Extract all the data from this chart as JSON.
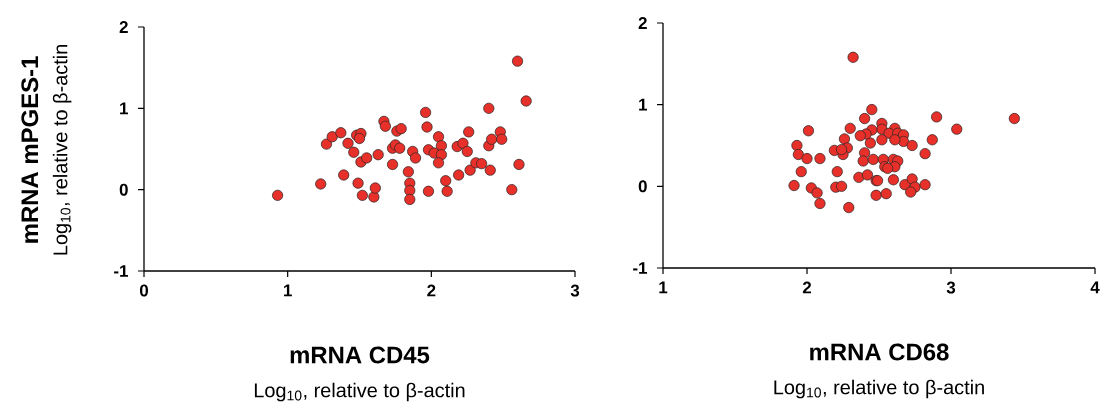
{
  "chart_data": [
    {
      "type": "scatter",
      "xlabel": "mRNA CD45",
      "ylabel": "mRNA mPGES-1",
      "annotations": [
        "Log$_{10}$, relative to β-actin",
        "Log$_{10}$, relative to β-actin"
      ],
      "xlim": [
        0,
        3
      ],
      "ylim": [
        -1,
        2
      ],
      "xticks": [
        0,
        1,
        2,
        3
      ],
      "yticks": [
        -1,
        0,
        1,
        2
      ],
      "marker": "circle",
      "series": [
        {
          "color": "#e8302a",
          "x": [
            0.93,
            1.23,
            1.27,
            1.31,
            1.37,
            1.42,
            1.39,
            1.46,
            1.48,
            1.51,
            1.5,
            1.51,
            1.55,
            1.49,
            1.52,
            1.6,
            1.61,
            1.63,
            1.67,
            1.68,
            1.73,
            1.73,
            1.75,
            1.78,
            1.76,
            1.79,
            1.84,
            1.85,
            1.85,
            1.85,
            1.87,
            1.89,
            1.96,
            1.97,
            1.98,
            1.98,
            2.02,
            2.05,
            2.07,
            2.07,
            2.05,
            2.1,
            2.11,
            2.18,
            2.22,
            2.25,
            2.26,
            2.19,
            2.27,
            2.31,
            2.35,
            2.4,
            2.4,
            2.42,
            2.41,
            2.48,
            2.49,
            2.56,
            2.6,
            2.61,
            2.66
          ],
          "values": [
            -0.07,
            0.07,
            0.56,
            0.65,
            0.7,
            0.57,
            0.18,
            0.46,
            0.67,
            0.69,
            0.63,
            0.34,
            0.39,
            0.08,
            -0.07,
            -0.09,
            0.02,
            0.43,
            0.84,
            0.78,
            0.31,
            0.51,
            0.55,
            0.51,
            0.72,
            0.75,
            0.22,
            0.08,
            -0.01,
            -0.12,
            0.47,
            0.39,
            0.95,
            0.77,
            0.49,
            -0.02,
            0.45,
            0.65,
            0.54,
            0.43,
            0.33,
            0.11,
            -0.02,
            0.53,
            0.57,
            0.47,
            0.71,
            0.18,
            0.24,
            0.33,
            0.32,
            1.0,
            0.54,
            0.62,
            0.24,
            0.71,
            0.62,
            0.0,
            1.58,
            0.31,
            1.09
          ]
        }
      ]
    },
    {
      "type": "scatter",
      "xlabel": "mRNA CD68",
      "annotations": [
        "Log$_{10}$, relative to β-actin"
      ],
      "xlim": [
        1,
        4
      ],
      "ylim": [
        -1,
        2
      ],
      "xticks": [
        1,
        2,
        3,
        4
      ],
      "yticks": [
        -1,
        0,
        1,
        2
      ],
      "marker": "circle",
      "series": [
        {
          "color": "#e8302a",
          "x": [
            2.32,
            2.45,
            2.4,
            2.52,
            2.52,
            2.45,
            2.61,
            2.57,
            2.63,
            2.67,
            2.67,
            2.61,
            2.52,
            2.44,
            2.41,
            2.37,
            2.3,
            2.26,
            2.28,
            2.25,
            2.19,
            2.24,
            2.01,
            1.93,
            1.94,
            2.0,
            2.09,
            1.96,
            1.91,
            2.03,
            2.07,
            2.09,
            2.21,
            2.2,
            2.24,
            2.29,
            2.4,
            2.39,
            2.46,
            2.53,
            2.6,
            2.63,
            2.54,
            2.61,
            2.56,
            2.36,
            2.42,
            2.48,
            2.49,
            2.6,
            2.48,
            2.55,
            2.68,
            2.73,
            2.75,
            2.72,
            2.82,
            2.73,
            2.82,
            2.87,
            2.9,
            3.04,
            3.44
          ],
          "values": [
            1.58,
            0.94,
            0.83,
            0.77,
            0.7,
            0.69,
            0.71,
            0.65,
            0.65,
            0.63,
            0.55,
            0.57,
            0.57,
            0.53,
            0.64,
            0.62,
            0.71,
            0.58,
            0.47,
            0.39,
            0.44,
            0.45,
            0.68,
            0.5,
            0.39,
            0.34,
            0.34,
            0.18,
            0.01,
            -0.02,
            -0.08,
            -0.21,
            0.18,
            -0.01,
            0.0,
            -0.26,
            0.41,
            0.31,
            0.33,
            0.33,
            0.33,
            0.31,
            0.24,
            0.24,
            0.22,
            0.11,
            0.14,
            0.07,
            0.07,
            0.08,
            -0.11,
            -0.09,
            0.02,
            0.09,
            -0.01,
            -0.07,
            0.02,
            0.5,
            0.4,
            0.57,
            0.85,
            0.7,
            0.83
          ]
        }
      ]
    }
  ]
}
